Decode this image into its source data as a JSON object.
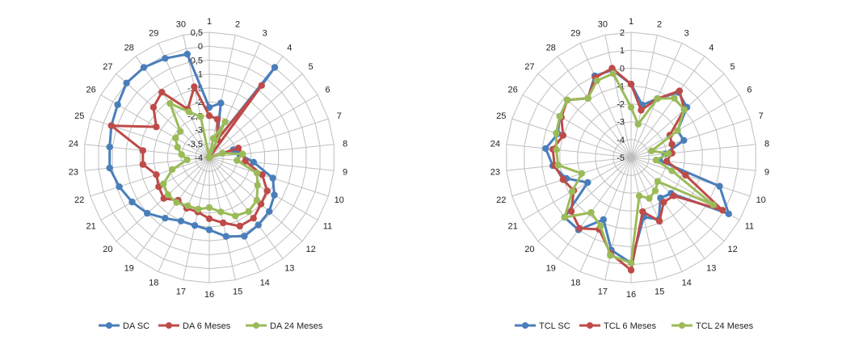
{
  "chart_data": [
    {
      "type": "radar",
      "title": "",
      "categories": [
        "1",
        "2",
        "3",
        "4",
        "5",
        "6",
        "7",
        "8",
        "9",
        "10",
        "11",
        "12",
        "13",
        "14",
        "15",
        "16",
        "17",
        "18",
        "19",
        "20",
        "21",
        "22",
        "23",
        "24",
        "25",
        "26",
        "27",
        "28",
        "29",
        "30"
      ],
      "r_ticks": [
        "0,5",
        "0",
        "-0,5",
        "-1",
        "-1,5",
        "-2",
        "-2,5",
        "-3",
        "-3,5",
        "-4"
      ],
      "r_range": [
        -4,
        0.5
      ],
      "legend_position": "bottom",
      "series": [
        {
          "name": "DA SC",
          "color": "#4a7ebb",
          "values": [
            -2.2,
            -2.0,
            -3.3,
            0.0,
            -4.0,
            -4.0,
            -3.1,
            -2.9,
            -2.4,
            -1.6,
            -1.3,
            -1.1,
            -1.0,
            -0.9,
            -1.1,
            -1.4,
            -1.5,
            -1.5,
            -1.3,
            -1.0,
            -0.8,
            -0.6,
            -0.4,
            -0.4,
            -0.3,
            -0.2,
            0.0,
            0.0,
            -0.1,
            -0.2
          ]
        },
        {
          "name": "DA 6 Meses",
          "color": "#be4b48",
          "values": [
            -2.5,
            -2.6,
            -3.3,
            -0.8,
            -4.0,
            -4.0,
            -2.9,
            -2.8,
            -2.7,
            -2.0,
            -1.6,
            -1.5,
            -1.3,
            -1.3,
            -1.6,
            -1.8,
            -2.0,
            -2.0,
            -2.1,
            -1.8,
            -1.9,
            -2.0,
            -1.6,
            -1.6,
            -0.3,
            -1.8,
            -1.3,
            -1.1,
            -2.1,
            -1.4
          ]
        },
        {
          "name": "DA 24 Meses",
          "color": "#9bbb59",
          "values": [
            -4.0,
            -3.3,
            -2.6,
            -4.0,
            -4.0,
            -4.0,
            -3.5,
            -2.8,
            -3.0,
            -2.2,
            -2.0,
            -1.7,
            -1.6,
            -1.7,
            -2.0,
            -2.2,
            -2.1,
            -2.1,
            -2.0,
            -2.0,
            -2.1,
            -2.6,
            -3.2,
            -3.0,
            -2.8,
            -2.6,
            -2.6,
            -1.6,
            -2.2,
            -2.5
          ]
        }
      ]
    },
    {
      "type": "radar",
      "title": "",
      "categories": [
        "1",
        "2",
        "3",
        "4",
        "5",
        "6",
        "7",
        "8",
        "9",
        "10",
        "11",
        "12",
        "13",
        "14",
        "15",
        "16",
        "17",
        "18",
        "19",
        "20",
        "21",
        "22",
        "23",
        "24",
        "25",
        "26",
        "27",
        "28",
        "29",
        "30"
      ],
      "r_ticks": [
        "2",
        "1",
        "0",
        "-1",
        "-2",
        "-3",
        "-4",
        "-5"
      ],
      "r_range": [
        -5,
        2
      ],
      "legend_position": "bottom",
      "series": [
        {
          "name": "TCL SC",
          "color": "#4a7ebb",
          "values": [
            -0.9,
            -2.0,
            -1.4,
            -0.5,
            -0.8,
            -2.0,
            -1.9,
            -3.1,
            -3.4,
            0.2,
            1.3,
            -2.0,
            -2.2,
            -1.2,
            -1.6,
            0.9,
            0.3,
            -1.2,
            0.0,
            0.0,
            -2.2,
            -1.2,
            -0.6,
            -0.2,
            -0.7,
            -0.4,
            -0.2,
            -0.9,
            0.0,
            0.0
          ]
        },
        {
          "name": "TCL 6 Meses",
          "color": "#be4b48",
          "values": [
            -0.9,
            -2.3,
            -1.4,
            -0.4,
            -1.0,
            -2.5,
            -2.6,
            -2.7,
            -3.0,
            -1.8,
            0.9,
            -1.8,
            -1.9,
            -1.1,
            -1.9,
            1.3,
            0.5,
            -0.6,
            -0.1,
            -0.5,
            -1.3,
            -1.0,
            -0.7,
            -0.6,
            -1.0,
            -0.5,
            -0.2,
            -0.9,
            -0.1,
            0.1
          ]
        },
        {
          "name": "TCL 24 Meses",
          "color": "#9bbb59",
          "values": [
            -2.2,
            -3.1,
            -1.4,
            -0.9,
            -1.0,
            -2.0,
            -3.8,
            -2.9,
            -3.6,
            -2.6,
            0.3,
            -3.0,
            -2.7,
            -2.5,
            -2.8,
            0.9,
            0.6,
            -0.8,
            -1.2,
            0.0,
            -1.2,
            -2.1,
            -0.9,
            -0.8,
            -0.6,
            -0.4,
            -0.2,
            -0.9,
            -0.3,
            -0.2
          ]
        }
      ]
    }
  ]
}
